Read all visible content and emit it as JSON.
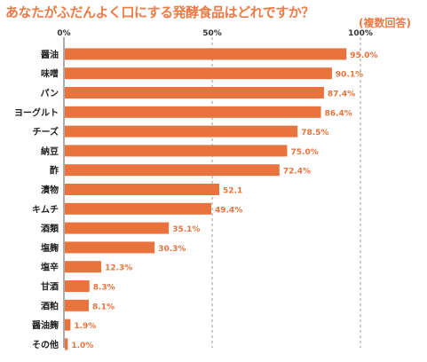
{
  "chart_data": {
    "type": "bar",
    "orientation": "horizontal",
    "title": "あなたがふだんよく口にする発酵食品はどれですか？",
    "subtitle": "(複数回答)",
    "categories": [
      "醤油",
      "味噌",
      "パン",
      "ヨーグルト",
      "チーズ",
      "納豆",
      "酢",
      "漬物",
      "キムチ",
      "酒類",
      "塩麹",
      "塩辛",
      "甘酒",
      "酒粕",
      "醤油麹",
      "その他"
    ],
    "values": [
      95.0,
      90.1,
      87.4,
      86.4,
      78.5,
      75.0,
      72.4,
      52.1,
      49.4,
      35.1,
      30.3,
      12.3,
      8.3,
      8.1,
      1.9,
      1.0
    ],
    "value_labels": [
      "95.0%",
      "90.1%",
      "87.4%",
      "86.4%",
      "78.5%",
      "75.0%",
      "72.4%",
      "52.1",
      "49.4%",
      "35.1%",
      "30.3%",
      "12.3%",
      "8.3%",
      "8.1%",
      "1.9%",
      "1.0%"
    ],
    "x_ticks": [
      0,
      50,
      100
    ],
    "x_tick_labels": [
      "0%",
      "50%",
      "100%"
    ],
    "xlim": [
      0,
      100
    ],
    "grid": "vertical dashed at 50% and 100%",
    "bar_color": "#e8733c",
    "title_color": "#ee7a45"
  }
}
